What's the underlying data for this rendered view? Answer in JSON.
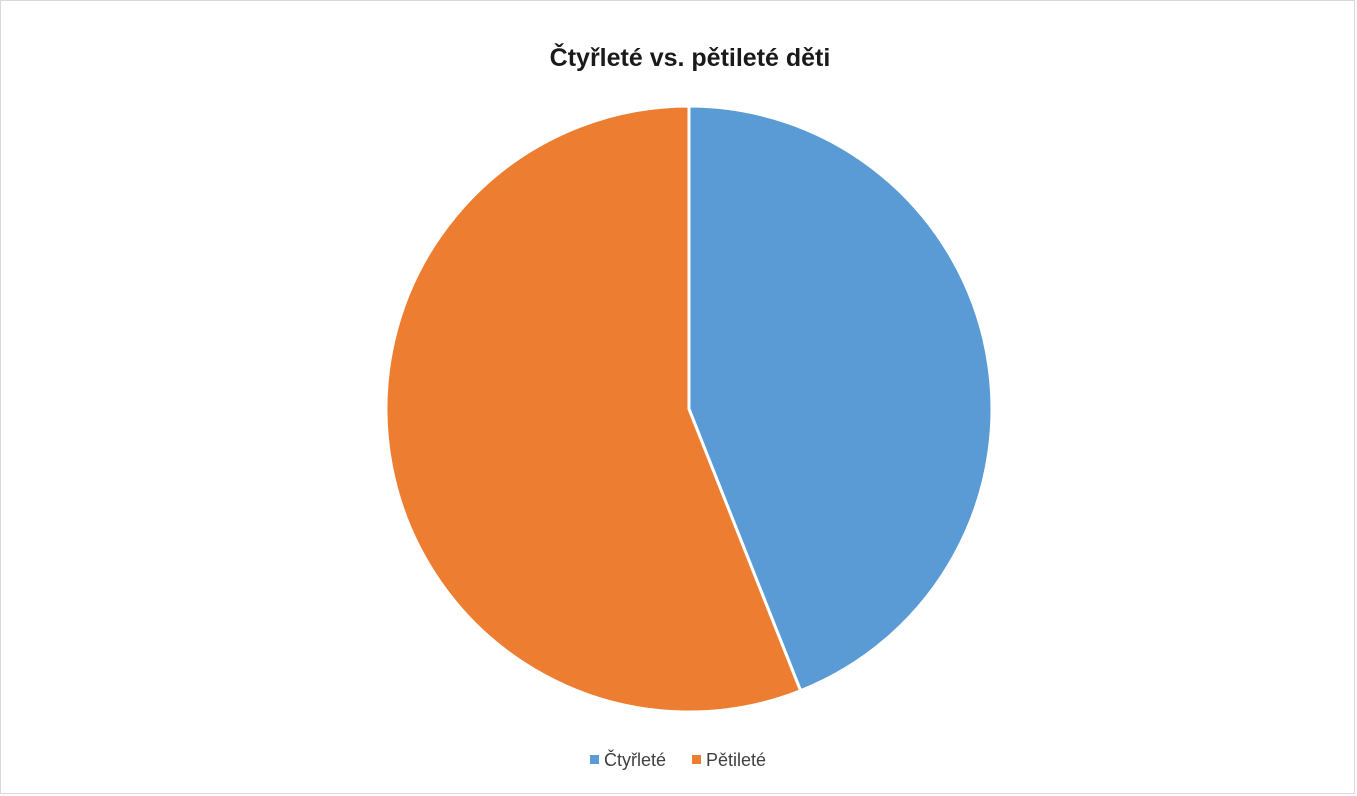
{
  "chart_data": {
    "type": "pie",
    "title": "Čtyřleté vs. pětileté děti",
    "categories": [
      "Čtyřleté",
      "Pětileté"
    ],
    "values": [
      44,
      56
    ],
    "colors": [
      "#5b9bd5",
      "#ed7d31"
    ],
    "start_angle_deg": 0,
    "direction": "clockwise",
    "legend_position": "bottom"
  }
}
